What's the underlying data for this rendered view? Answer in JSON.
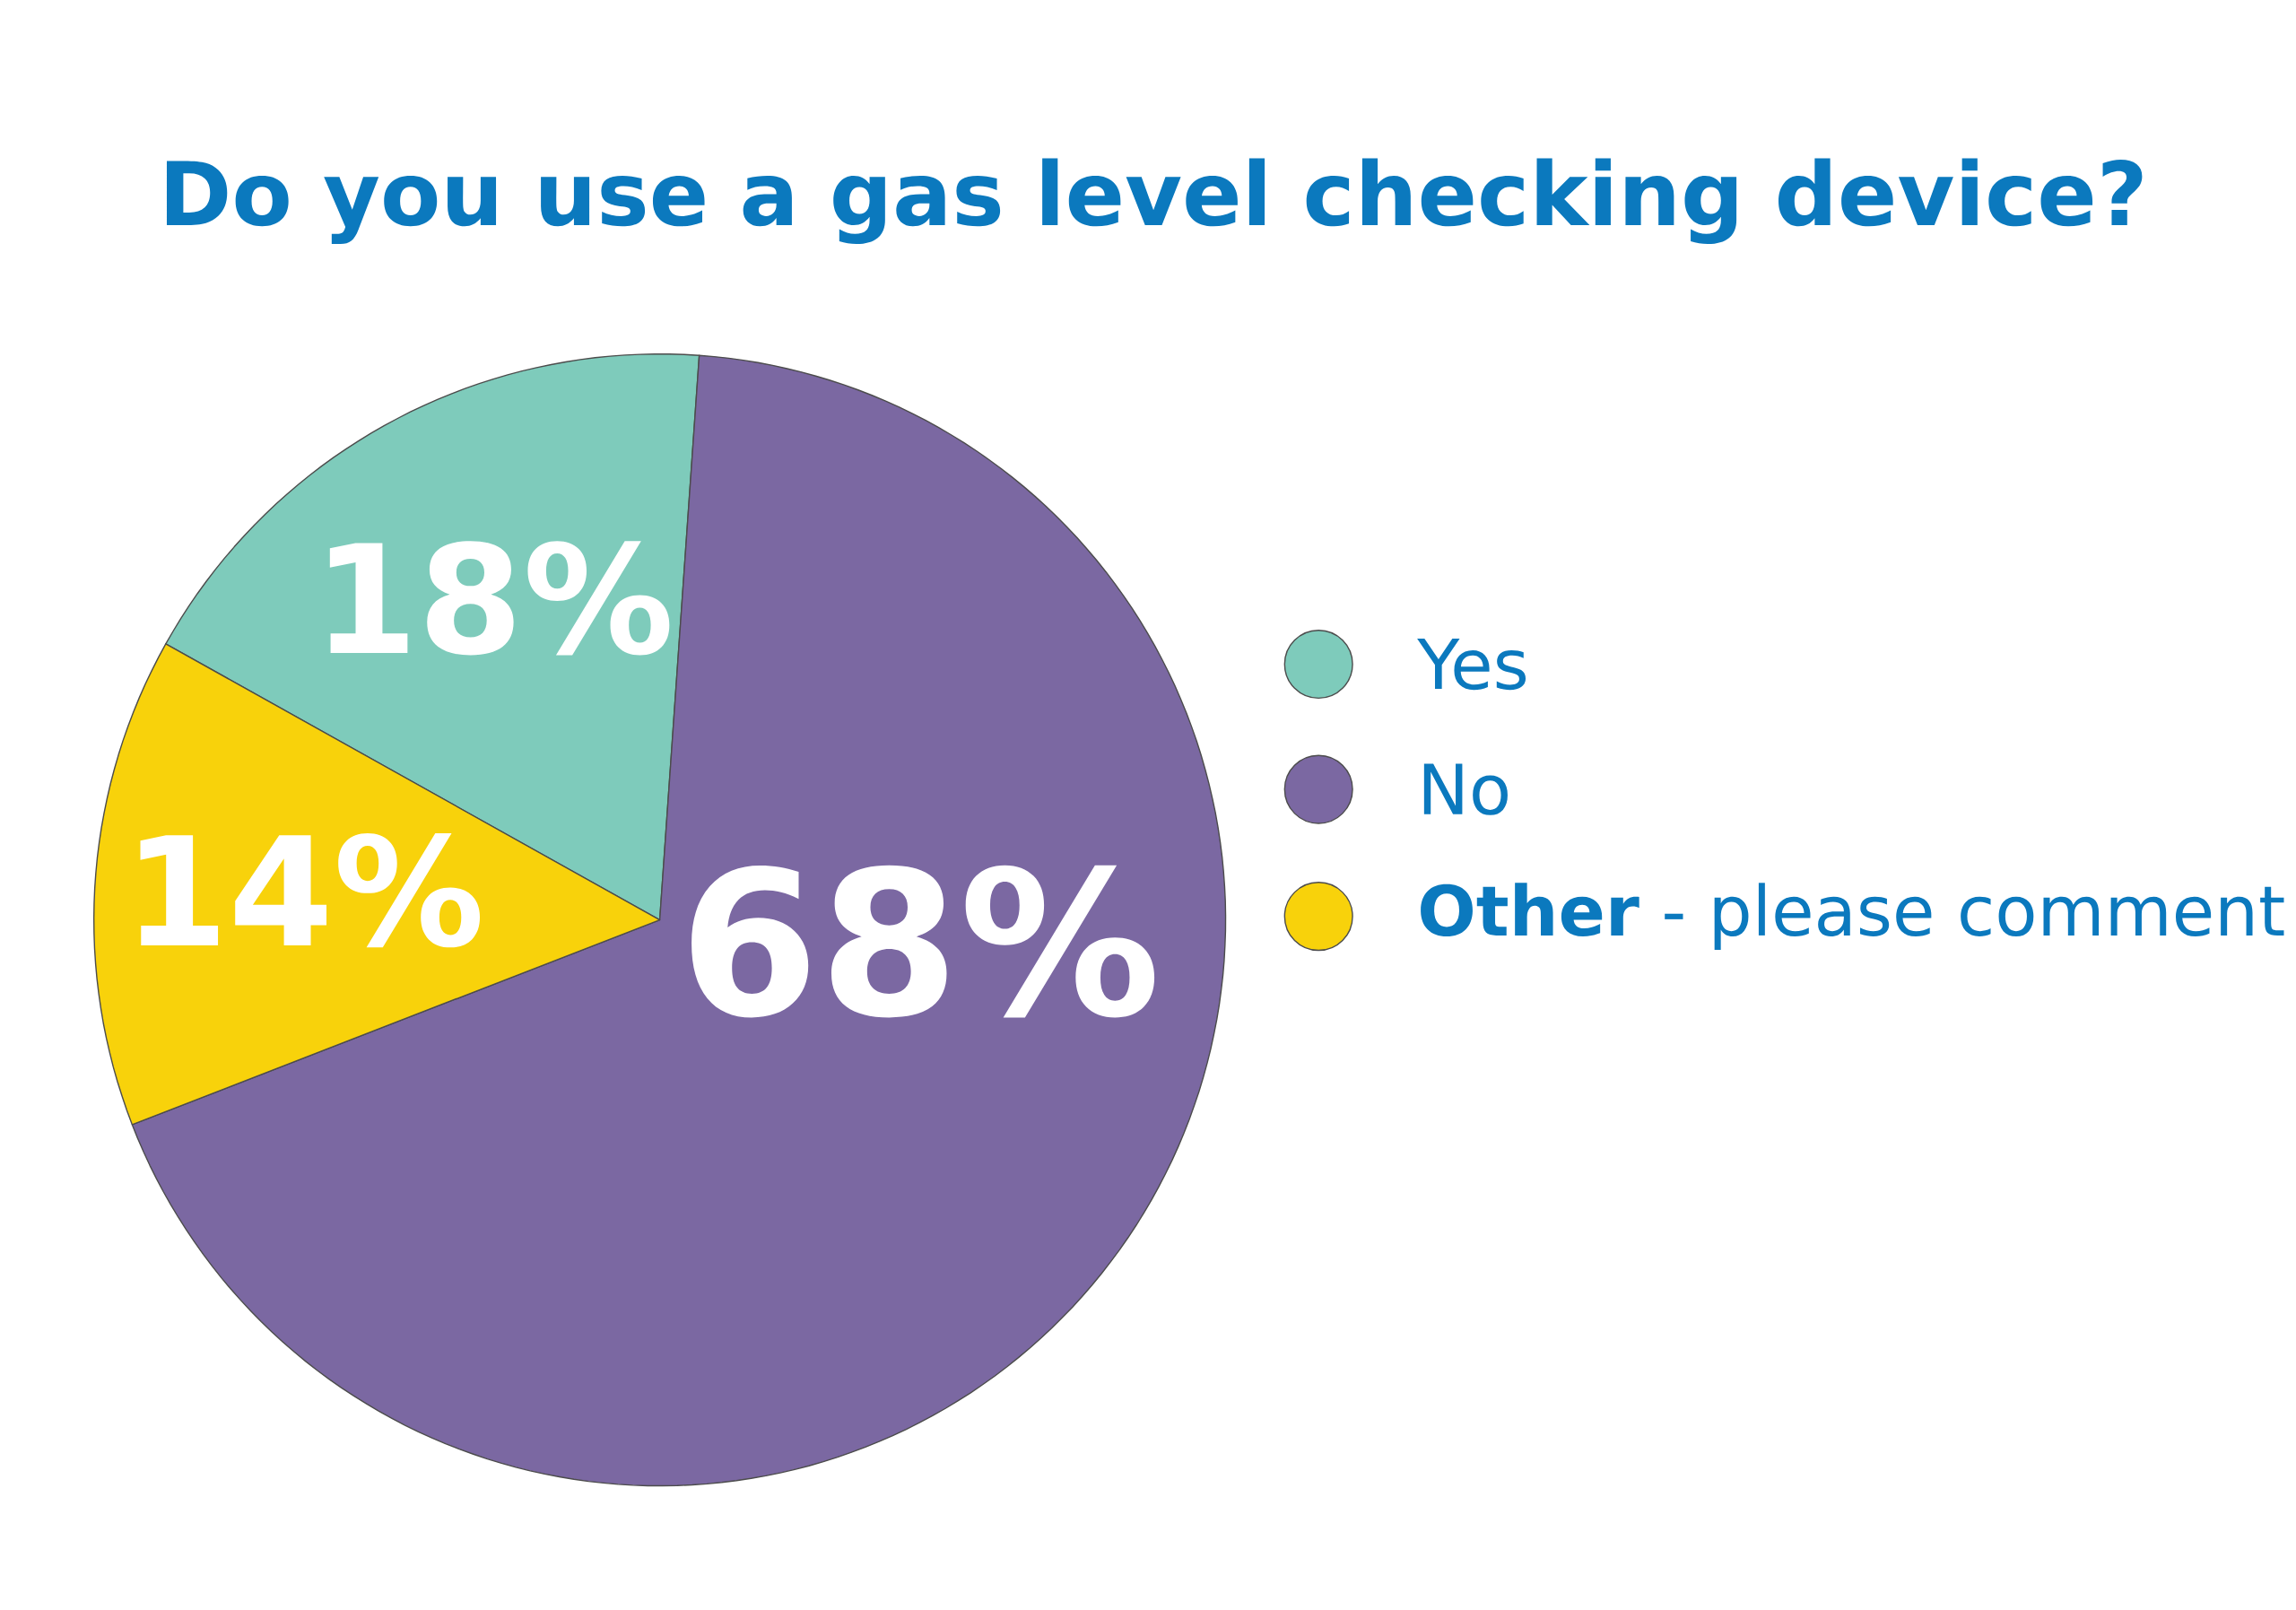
{
  "chart_data": {
    "type": "pie",
    "title": "Do you use a gas level checking device?",
    "categories": [
      "Yes",
      "No",
      "**Other** - please comment"
    ],
    "values": [
      18,
      68,
      14
    ],
    "colors": [
      "#7ecbbb",
      "#7b68a2",
      "#f8d20b"
    ],
    "value_labels": [
      "18%",
      "68%",
      "14%"
    ],
    "legend": "right"
  }
}
